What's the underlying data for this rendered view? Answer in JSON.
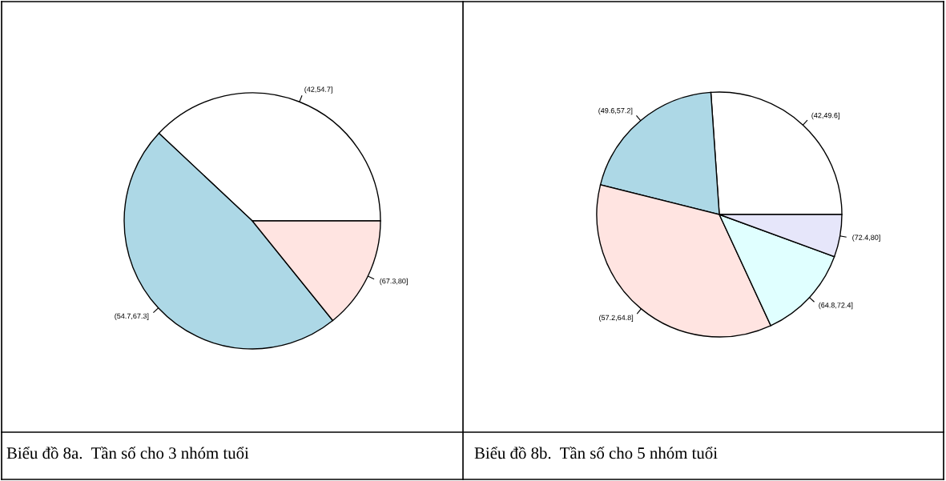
{
  "chart_data": [
    {
      "type": "pie",
      "title": "Biểu đồ 8a.  Tần số cho 3 nhóm tuổi",
      "categories": [
        "(42,54.7]",
        "(54.7,67.3]",
        "(67.3,80]"
      ],
      "values": [
        38,
        47.8,
        14.2
      ],
      "colors": [
        "#ffffff",
        "#add8e6",
        "#ffe4e1"
      ]
    },
    {
      "type": "pie",
      "title": "Biểu đồ 8b.  Tần số cho 5 nhóm tuổi",
      "categories": [
        "(42,49.6]",
        "(49.6,57.2]",
        "(57.2,64.8]",
        "(64.8,72.4]",
        "(72.4,80]"
      ],
      "values": [
        26.1,
        20,
        35.8,
        12.5,
        5.6
      ],
      "colors": [
        "#ffffff",
        "#add8e6",
        "#ffe4e1",
        "#e0ffff",
        "#e6e6fa"
      ]
    }
  ]
}
